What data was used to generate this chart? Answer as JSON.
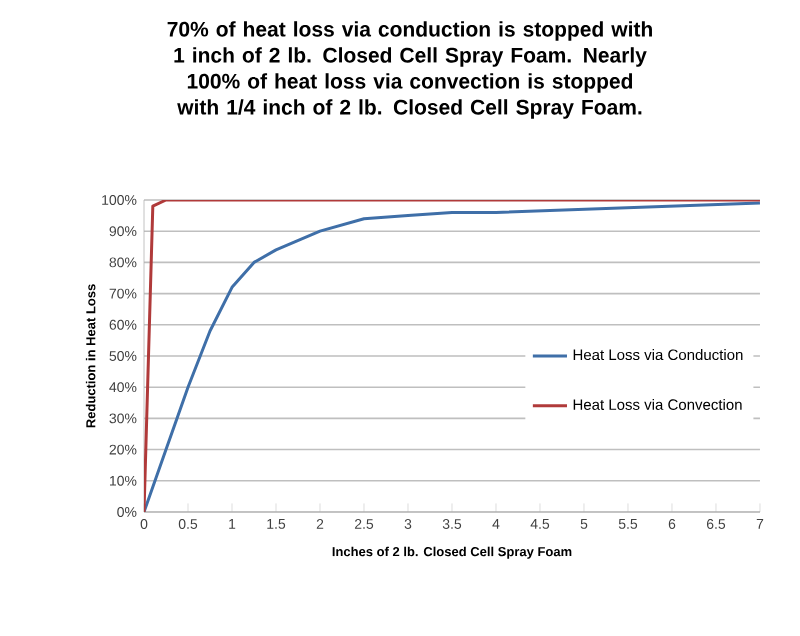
{
  "chart_data": {
    "type": "line",
    "title": "70% of heat loss via conduction is stopped with 1 inch of 2 lb. Closed Cell Spray Foam.  Nearly 100% of heat loss via convection is stopped with 1/4 inch of 2 lb. Closed Cell Spray Foam.",
    "xlabel": "Inches of 2 lb. Closed Cell Spray Foam",
    "ylabel": "Reduction in Heat Loss",
    "series": [
      {
        "name": "Heat Loss via Conduction",
        "color": "#3f6fa8",
        "x": [
          0,
          0.25,
          0.5,
          0.75,
          1,
          1.25,
          1.5,
          2,
          2.5,
          3,
          3.5,
          4,
          5,
          6,
          7
        ],
        "values": [
          0,
          20,
          40,
          58,
          72,
          80,
          84,
          90,
          94,
          95,
          96,
          96,
          97,
          98,
          99
        ]
      },
      {
        "name": "Heat Loss via Convection",
        "color": "#b03a3a",
        "x": [
          0,
          0.1,
          0.25,
          7
        ],
        "values": [
          0,
          98,
          100,
          100
        ]
      }
    ],
    "xlim": [
      0,
      7
    ],
    "xticks": [
      0,
      {
        "value": 0.5,
        "label": "0.5"
      },
      1,
      {
        "value": 1.5,
        "label": "1.5"
      },
      2,
      {
        "value": 2.5,
        "label": "2.5"
      },
      3,
      {
        "value": 3.5,
        "label": "3.5"
      },
      4,
      {
        "value": 4.5,
        "label": "4.5"
      },
      5,
      {
        "value": 5.5,
        "label": "5.5"
      },
      6,
      {
        "value": 6.5,
        "label": "6.5"
      },
      7
    ],
    "ylim": [
      0,
      100
    ],
    "yticks": [
      {
        "value": 0,
        "label": "0%"
      },
      {
        "value": 10,
        "label": "10%"
      },
      {
        "value": 20,
        "label": "20%"
      },
      {
        "value": 30,
        "label": "30%"
      },
      {
        "value": 40,
        "label": "40%"
      },
      {
        "value": 50,
        "label": "50%"
      },
      {
        "value": 60,
        "label": "60%"
      },
      {
        "value": 70,
        "label": "70%"
      },
      {
        "value": 80,
        "label": "80%"
      },
      {
        "value": 90,
        "label": "90%"
      },
      {
        "value": 100,
        "label": "100%"
      }
    ],
    "grid": "y",
    "legend": "right",
    "marker": "none",
    "line_style": "solid"
  }
}
